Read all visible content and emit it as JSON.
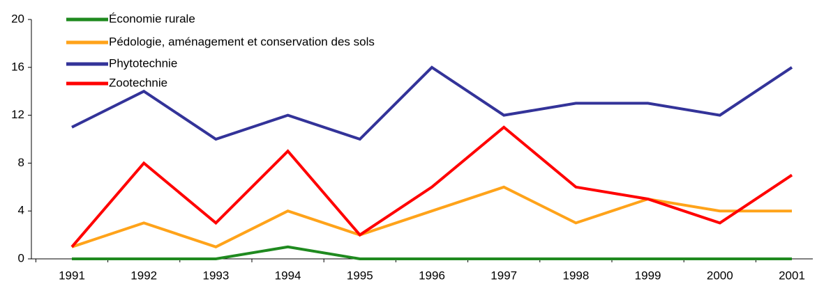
{
  "chart_data": {
    "type": "line",
    "categories": [
      "1991",
      "1992",
      "1993",
      "1994",
      "1995",
      "1996",
      "1997",
      "1998",
      "1999",
      "2000",
      "2001"
    ],
    "series": [
      {
        "name": "Économie rurale",
        "color": "#1f8a1f",
        "values": [
          0,
          0,
          0,
          1,
          0,
          0,
          0,
          0,
          0,
          0,
          0
        ]
      },
      {
        "name": "Pédologie, aménagement et conservation des sols",
        "color": "#ffa31a",
        "values": [
          1,
          3,
          1,
          4,
          2,
          4,
          6,
          3,
          5,
          4,
          4
        ]
      },
      {
        "name": "Phytotechnie",
        "color": "#333399",
        "values": [
          11,
          14,
          10,
          12,
          10,
          16,
          12,
          13,
          13,
          12,
          16
        ]
      },
      {
        "name": "Zootechnie",
        "color": "#ff0000",
        "values": [
          1,
          8,
          3,
          9,
          2,
          6,
          11,
          6,
          5,
          3,
          7
        ]
      }
    ],
    "ylim": [
      0,
      20
    ],
    "yticks": [
      0,
      4,
      8,
      12,
      16,
      20
    ],
    "grid": false,
    "legend": "top-left"
  }
}
